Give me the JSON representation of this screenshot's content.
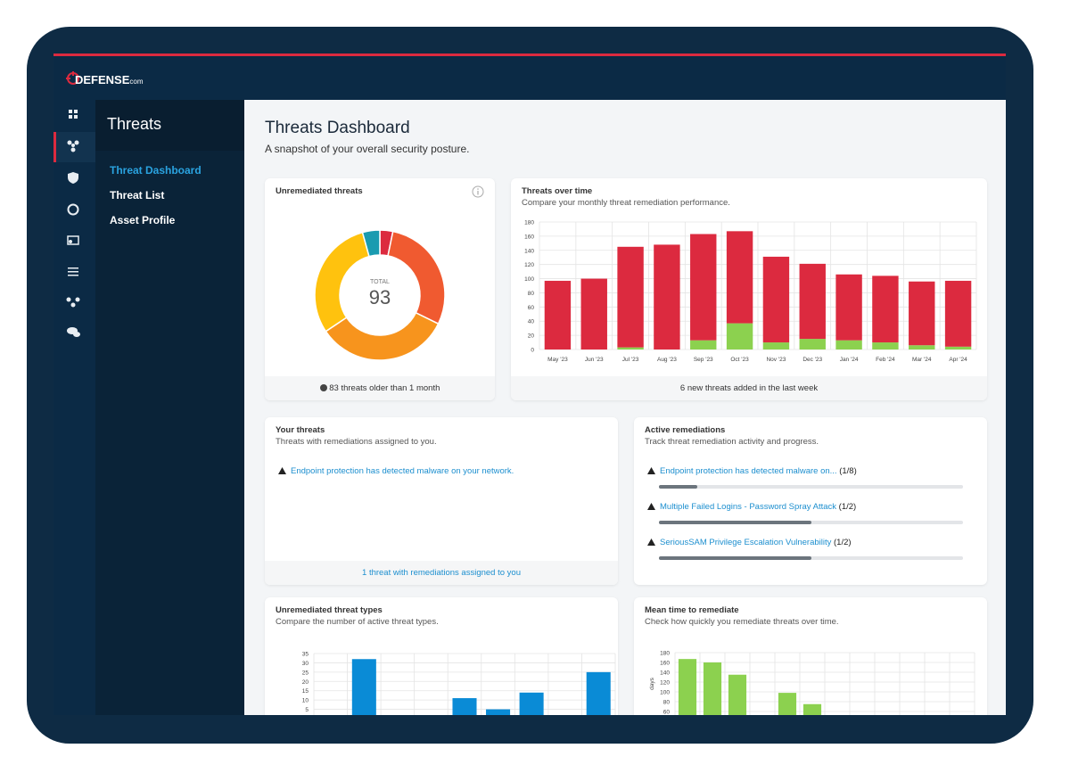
{
  "brand": {
    "name": "DEFENSE",
    "suffix": "com"
  },
  "sidebar": {
    "title": "Threats",
    "items": [
      "Threat Dashboard",
      "Threat List",
      "Asset Profile"
    ],
    "active": 0
  },
  "header": {
    "title": "Threats Dashboard",
    "subtitle": "A snapshot of your overall security posture."
  },
  "unremediated_threats": {
    "type": "pie",
    "title": "Unremediated threats",
    "center_label": "TOTAL",
    "total": 93,
    "values": [
      3,
      27,
      31,
      28,
      4
    ],
    "colors": [
      "#dc2a3f",
      "#f05a30",
      "#f7941d",
      "#ffc20e",
      "#1a9bb0"
    ],
    "footer": "83 threats older than 1 month"
  },
  "threats_over_time": {
    "type": "bar",
    "stacked": true,
    "title": "Threats over time",
    "subtitle": "Compare your monthly threat remediation performance.",
    "categories": [
      "May '23",
      "Jun '23",
      "Jul '23",
      "Aug '23",
      "Sep '23",
      "Oct '23",
      "Nov '23",
      "Dec '23",
      "Jan '24",
      "Feb '24",
      "Mar '24",
      "Apr '24"
    ],
    "series": [
      {
        "color": "#8cd14f",
        "values": [
          0,
          0,
          3,
          0,
          13,
          37,
          10,
          15,
          13,
          10,
          6,
          4
        ]
      },
      {
        "color": "#dc2a3f",
        "values": [
          97,
          100,
          142,
          148,
          150,
          130,
          121,
          106,
          93,
          94,
          90,
          93
        ]
      }
    ],
    "ylim": [
      0,
      180
    ],
    "yticks": [
      0,
      20,
      40,
      60,
      80,
      100,
      120,
      140,
      160,
      180
    ],
    "grid": true,
    "footer": "6 new threats added in the last week"
  },
  "your_threats": {
    "title": "Your threats",
    "subtitle": "Threats with remediations assigned to you.",
    "items": [
      "Endpoint protection has detected malware on your network."
    ],
    "footer": "1 threat with remediations assigned to you"
  },
  "active_remediations": {
    "title": "Active remediations",
    "subtitle": "Track threat remediation activity and progress.",
    "items": [
      {
        "label": "Endpoint protection has detected malware on...",
        "count_label": "(1/8)",
        "done": 1,
        "total": 8
      },
      {
        "label": "Multiple Failed Logins - Password Spray Attack",
        "count_label": "(1/2)",
        "done": 1,
        "total": 2
      },
      {
        "label": "SeriousSAM Privilege Escalation Vulnerability",
        "count_label": "(1/2)",
        "done": 1,
        "total": 2
      }
    ]
  },
  "threat_types": {
    "type": "bar",
    "title": "Unremediated threat types",
    "subtitle": "Compare the number of active threat types.",
    "categories": [
      null,
      null,
      null,
      null,
      null,
      null,
      null,
      null,
      null
    ],
    "values": [
      0,
      32,
      0,
      0,
      11,
      5,
      14,
      0,
      25
    ],
    "color": "#0a8bd6",
    "ylim": [
      0,
      35
    ],
    "yticks": [
      5,
      10,
      15,
      20,
      25,
      30,
      35
    ],
    "grid": true
  },
  "mean_time": {
    "type": "bar",
    "title": "Mean time to remediate",
    "subtitle": "Check how quickly you remediate threats over time.",
    "ylabel": "days",
    "categories": [
      null,
      null,
      null,
      null,
      null,
      null,
      null,
      null,
      null,
      null,
      null,
      null
    ],
    "values": [
      167,
      160,
      135,
      0,
      98,
      75,
      0,
      0,
      0,
      0,
      0,
      0
    ],
    "color": "#8cd14f",
    "ylim": [
      0,
      180
    ],
    "yticks": [
      60,
      80,
      100,
      120,
      140,
      160,
      180
    ],
    "grid": true
  }
}
